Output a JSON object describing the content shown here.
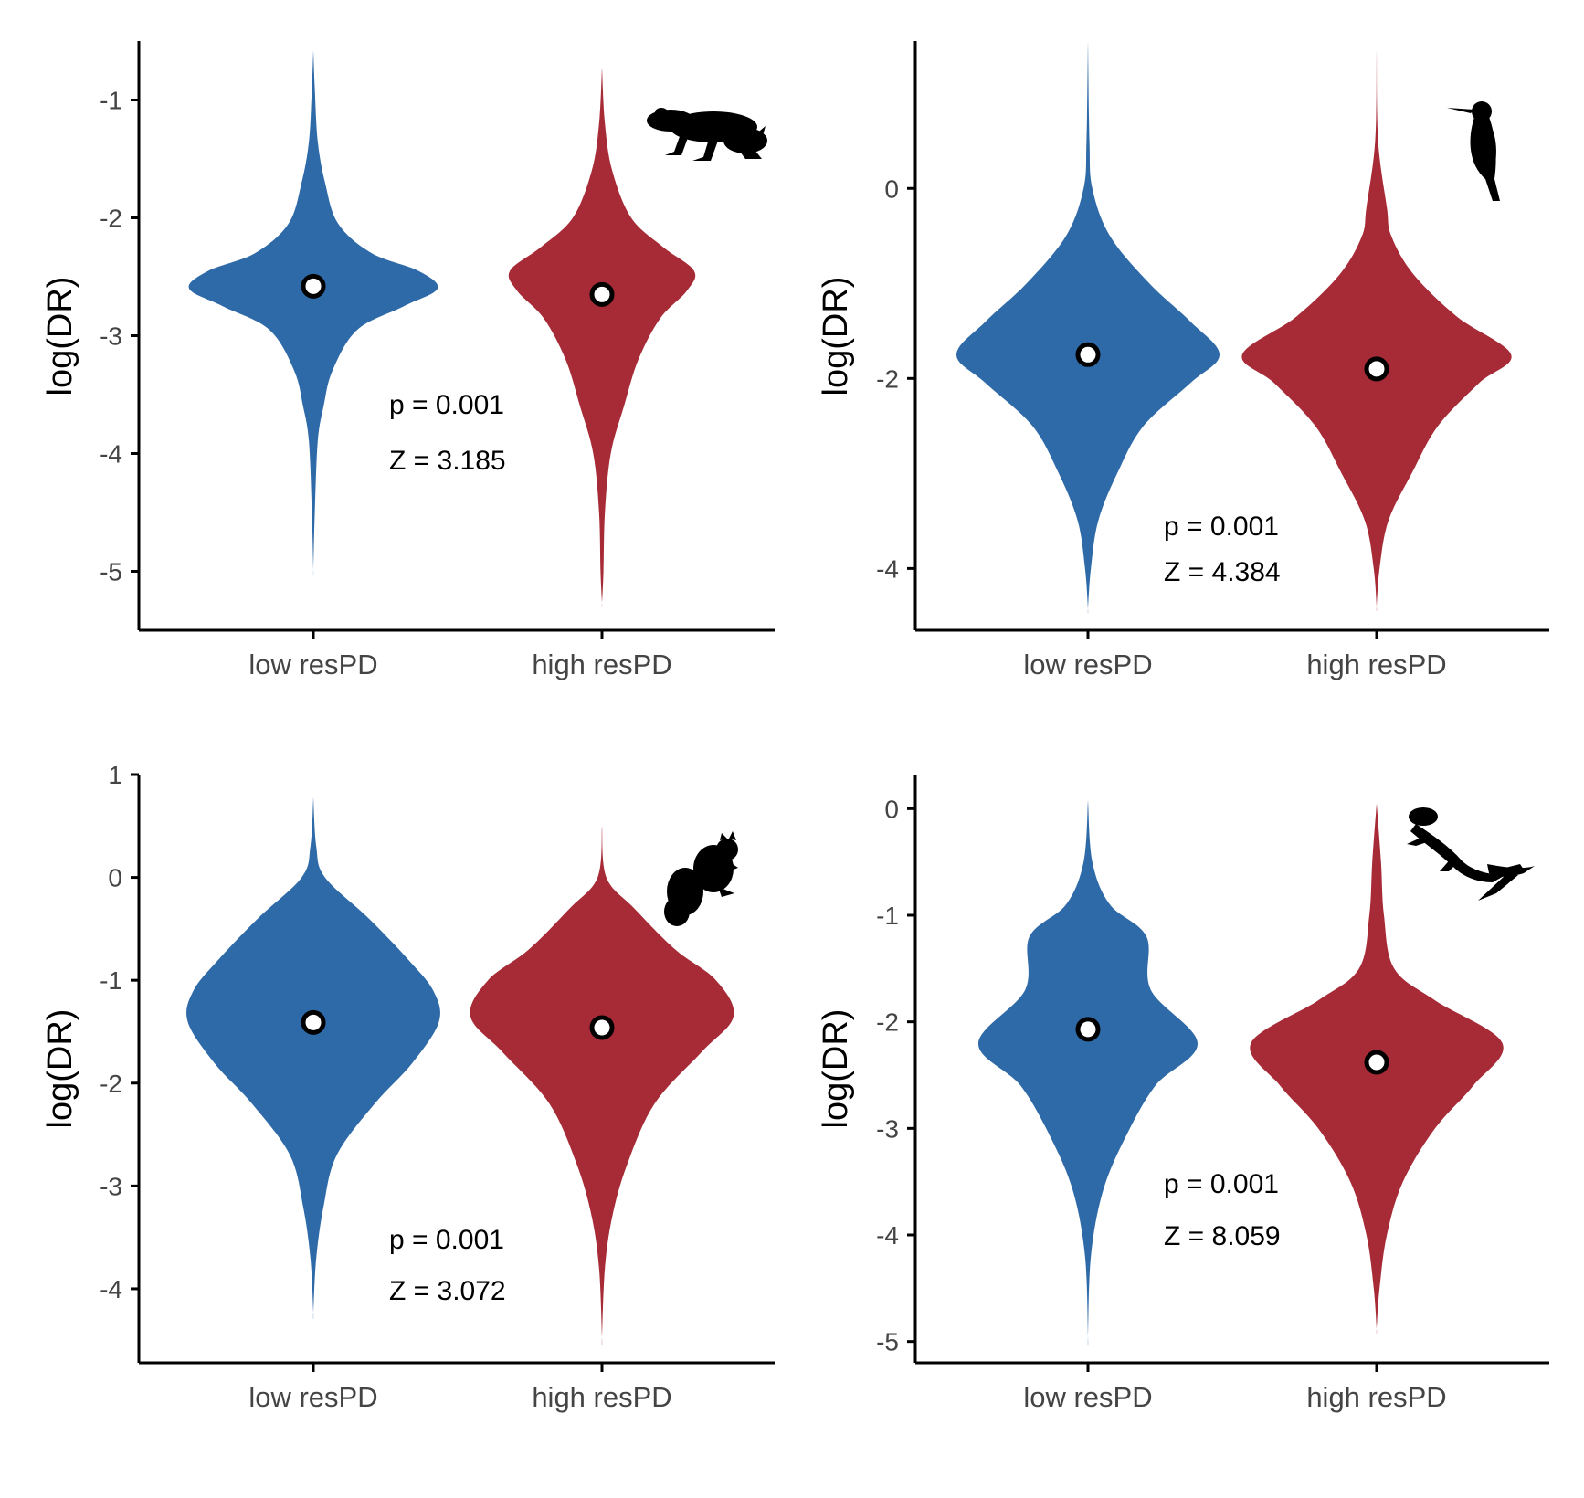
{
  "colors": {
    "low": "#2f6aa8",
    "high": "#a62b36"
  },
  "chart_data": [
    {
      "type": "violin",
      "categories": [
        "low resPD",
        "high resPD"
      ],
      "ylabel": "log(DR)",
      "ylim": [
        -5.5,
        -0.5
      ],
      "yticks": [
        -5,
        -4,
        -3,
        -2,
        -1
      ],
      "yticklabels": [
        "-5",
        "-4",
        "-3",
        "-2",
        "-1"
      ],
      "annotation_p": "p = 0.001",
      "annotation_z": "Z = 3.185",
      "silhouette": "frog-icon",
      "series": [
        {
          "category": "low resPD",
          "color": "#2f6aa8",
          "mean": -2.58,
          "density": [
            [
              -0.58,
              0.0
            ],
            [
              -0.9,
              0.01
            ],
            [
              -1.35,
              0.03
            ],
            [
              -1.7,
              0.08
            ],
            [
              -2.05,
              0.17
            ],
            [
              -2.3,
              0.4
            ],
            [
              -2.45,
              0.72
            ],
            [
              -2.6,
              0.85
            ],
            [
              -2.75,
              0.62
            ],
            [
              -2.95,
              0.3
            ],
            [
              -3.3,
              0.13
            ],
            [
              -3.6,
              0.07
            ],
            [
              -3.9,
              0.03
            ],
            [
              -4.5,
              0.01
            ],
            [
              -4.98,
              0.0
            ]
          ]
        },
        {
          "category": "high resPD",
          "color": "#a62b36",
          "mean": -2.65,
          "density": [
            [
              -0.72,
              0.0
            ],
            [
              -1.2,
              0.02
            ],
            [
              -1.6,
              0.07
            ],
            [
              -2.0,
              0.2
            ],
            [
              -2.25,
              0.42
            ],
            [
              -2.45,
              0.63
            ],
            [
              -2.62,
              0.58
            ],
            [
              -2.85,
              0.4
            ],
            [
              -3.2,
              0.25
            ],
            [
              -3.6,
              0.15
            ],
            [
              -4.0,
              0.06
            ],
            [
              -4.5,
              0.02
            ],
            [
              -5.0,
              0.01
            ],
            [
              -5.27,
              0.0
            ]
          ]
        }
      ]
    },
    {
      "type": "violin",
      "categories": [
        "low resPD",
        "high resPD"
      ],
      "ylabel": "log(DR)",
      "ylim": [
        -4.65,
        1.55
      ],
      "yticks": [
        -4,
        -2,
        0
      ],
      "yticklabels": [
        "-4",
        "-2",
        "0"
      ],
      "annotation_p": "p = 0.001",
      "annotation_z": "Z = 4.384",
      "silhouette": "hummingbird-icon",
      "series": [
        {
          "category": "low resPD",
          "color": "#2f6aa8",
          "mean": -1.75,
          "density": [
            [
              1.55,
              0.0
            ],
            [
              0.5,
              0.01
            ],
            [
              0.0,
              0.03
            ],
            [
              -0.5,
              0.15
            ],
            [
              -1.0,
              0.42
            ],
            [
              -1.4,
              0.7
            ],
            [
              -1.75,
              0.9
            ],
            [
              -2.05,
              0.7
            ],
            [
              -2.5,
              0.38
            ],
            [
              -3.0,
              0.2
            ],
            [
              -3.5,
              0.07
            ],
            [
              -4.0,
              0.02
            ],
            [
              -4.42,
              0.0
            ]
          ]
        },
        {
          "category": "high resPD",
          "color": "#a62b36",
          "mean": -1.9,
          "density": [
            [
              1.45,
              0.0
            ],
            [
              0.5,
              0.01
            ],
            [
              -0.2,
              0.07
            ],
            [
              -0.5,
              0.1
            ],
            [
              -0.9,
              0.25
            ],
            [
              -1.35,
              0.55
            ],
            [
              -1.75,
              0.92
            ],
            [
              -2.05,
              0.7
            ],
            [
              -2.5,
              0.42
            ],
            [
              -3.0,
              0.24
            ],
            [
              -3.5,
              0.08
            ],
            [
              -4.0,
              0.02
            ],
            [
              -4.4,
              0.0
            ]
          ]
        }
      ]
    },
    {
      "type": "violin",
      "categories": [
        "low resPD",
        "high resPD"
      ],
      "ylabel": "log(DR)",
      "ylim": [
        -4.72,
        1.0
      ],
      "yticks": [
        -4,
        -3,
        -2,
        -1,
        0,
        1
      ],
      "yticklabels": [
        "-4",
        "-3",
        "-2",
        "-1",
        "0",
        "1"
      ],
      "annotation_p": "p = 0.001",
      "annotation_z": "Z = 3.072",
      "silhouette": "squirrel-icon",
      "series": [
        {
          "category": "low resPD",
          "color": "#2f6aa8",
          "mean": -1.41,
          "density": [
            [
              0.78,
              0.0
            ],
            [
              0.3,
              0.02
            ],
            [
              0.0,
              0.08
            ],
            [
              -0.4,
              0.38
            ],
            [
              -0.8,
              0.65
            ],
            [
              -1.1,
              0.82
            ],
            [
              -1.4,
              0.86
            ],
            [
              -1.8,
              0.68
            ],
            [
              -2.2,
              0.42
            ],
            [
              -2.7,
              0.16
            ],
            [
              -3.2,
              0.07
            ],
            [
              -3.7,
              0.02
            ],
            [
              -4.23,
              0.0
            ]
          ]
        },
        {
          "category": "high resPD",
          "color": "#a62b36",
          "mean": -1.46,
          "density": [
            [
              0.5,
              0.0
            ],
            [
              0.0,
              0.03
            ],
            [
              -0.3,
              0.22
            ],
            [
              -0.7,
              0.5
            ],
            [
              -1.0,
              0.78
            ],
            [
              -1.35,
              0.9
            ],
            [
              -1.7,
              0.68
            ],
            [
              -2.2,
              0.36
            ],
            [
              -2.8,
              0.17
            ],
            [
              -3.3,
              0.07
            ],
            [
              -3.8,
              0.02
            ],
            [
              -4.47,
              0.0
            ]
          ]
        }
      ]
    },
    {
      "type": "violin",
      "categories": [
        "low resPD",
        "high resPD"
      ],
      "ylabel": "log(DR)",
      "ylim": [
        -5.2,
        0.32
      ],
      "yticks": [
        -5,
        -4,
        -3,
        -2,
        -1,
        0
      ],
      "yticklabels": [
        "-5",
        "-4",
        "-3",
        "-2",
        "-1",
        "0"
      ],
      "annotation_p": "p = 0.001",
      "annotation_z": "Z = 8.059",
      "silhouette": "lizard-icon",
      "series": [
        {
          "category": "low resPD",
          "color": "#2f6aa8",
          "mean": -2.07,
          "density": [
            [
              0.08,
              0.0
            ],
            [
              -0.5,
              0.03
            ],
            [
              -0.9,
              0.15
            ],
            [
              -1.2,
              0.4
            ],
            [
              -1.7,
              0.43
            ],
            [
              -2.2,
              0.75
            ],
            [
              -2.6,
              0.46
            ],
            [
              -3.1,
              0.25
            ],
            [
              -3.6,
              0.1
            ],
            [
              -4.2,
              0.02
            ],
            [
              -4.95,
              0.0
            ]
          ]
        },
        {
          "category": "high resPD",
          "color": "#a62b36",
          "mean": -2.38,
          "density": [
            [
              0.05,
              0.0
            ],
            [
              -0.5,
              0.03
            ],
            [
              -1.0,
              0.05
            ],
            [
              -1.5,
              0.12
            ],
            [
              -1.8,
              0.4
            ],
            [
              -2.2,
              0.86
            ],
            [
              -2.6,
              0.66
            ],
            [
              -3.0,
              0.4
            ],
            [
              -3.5,
              0.18
            ],
            [
              -4.0,
              0.07
            ],
            [
              -4.5,
              0.02
            ],
            [
              -4.88,
              0.0
            ]
          ]
        }
      ]
    }
  ]
}
